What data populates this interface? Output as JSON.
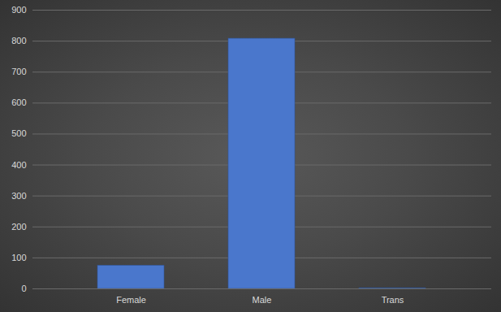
{
  "chart_data": {
    "type": "bar",
    "categories": [
      "Female",
      "Male",
      "Trans"
    ],
    "values": [
      75,
      808,
      2
    ],
    "color": "#4a77cc",
    "ylim": [
      0,
      900
    ],
    "yticks": [
      0,
      100,
      200,
      300,
      400,
      500,
      600,
      700,
      800,
      900
    ],
    "grid": true
  }
}
